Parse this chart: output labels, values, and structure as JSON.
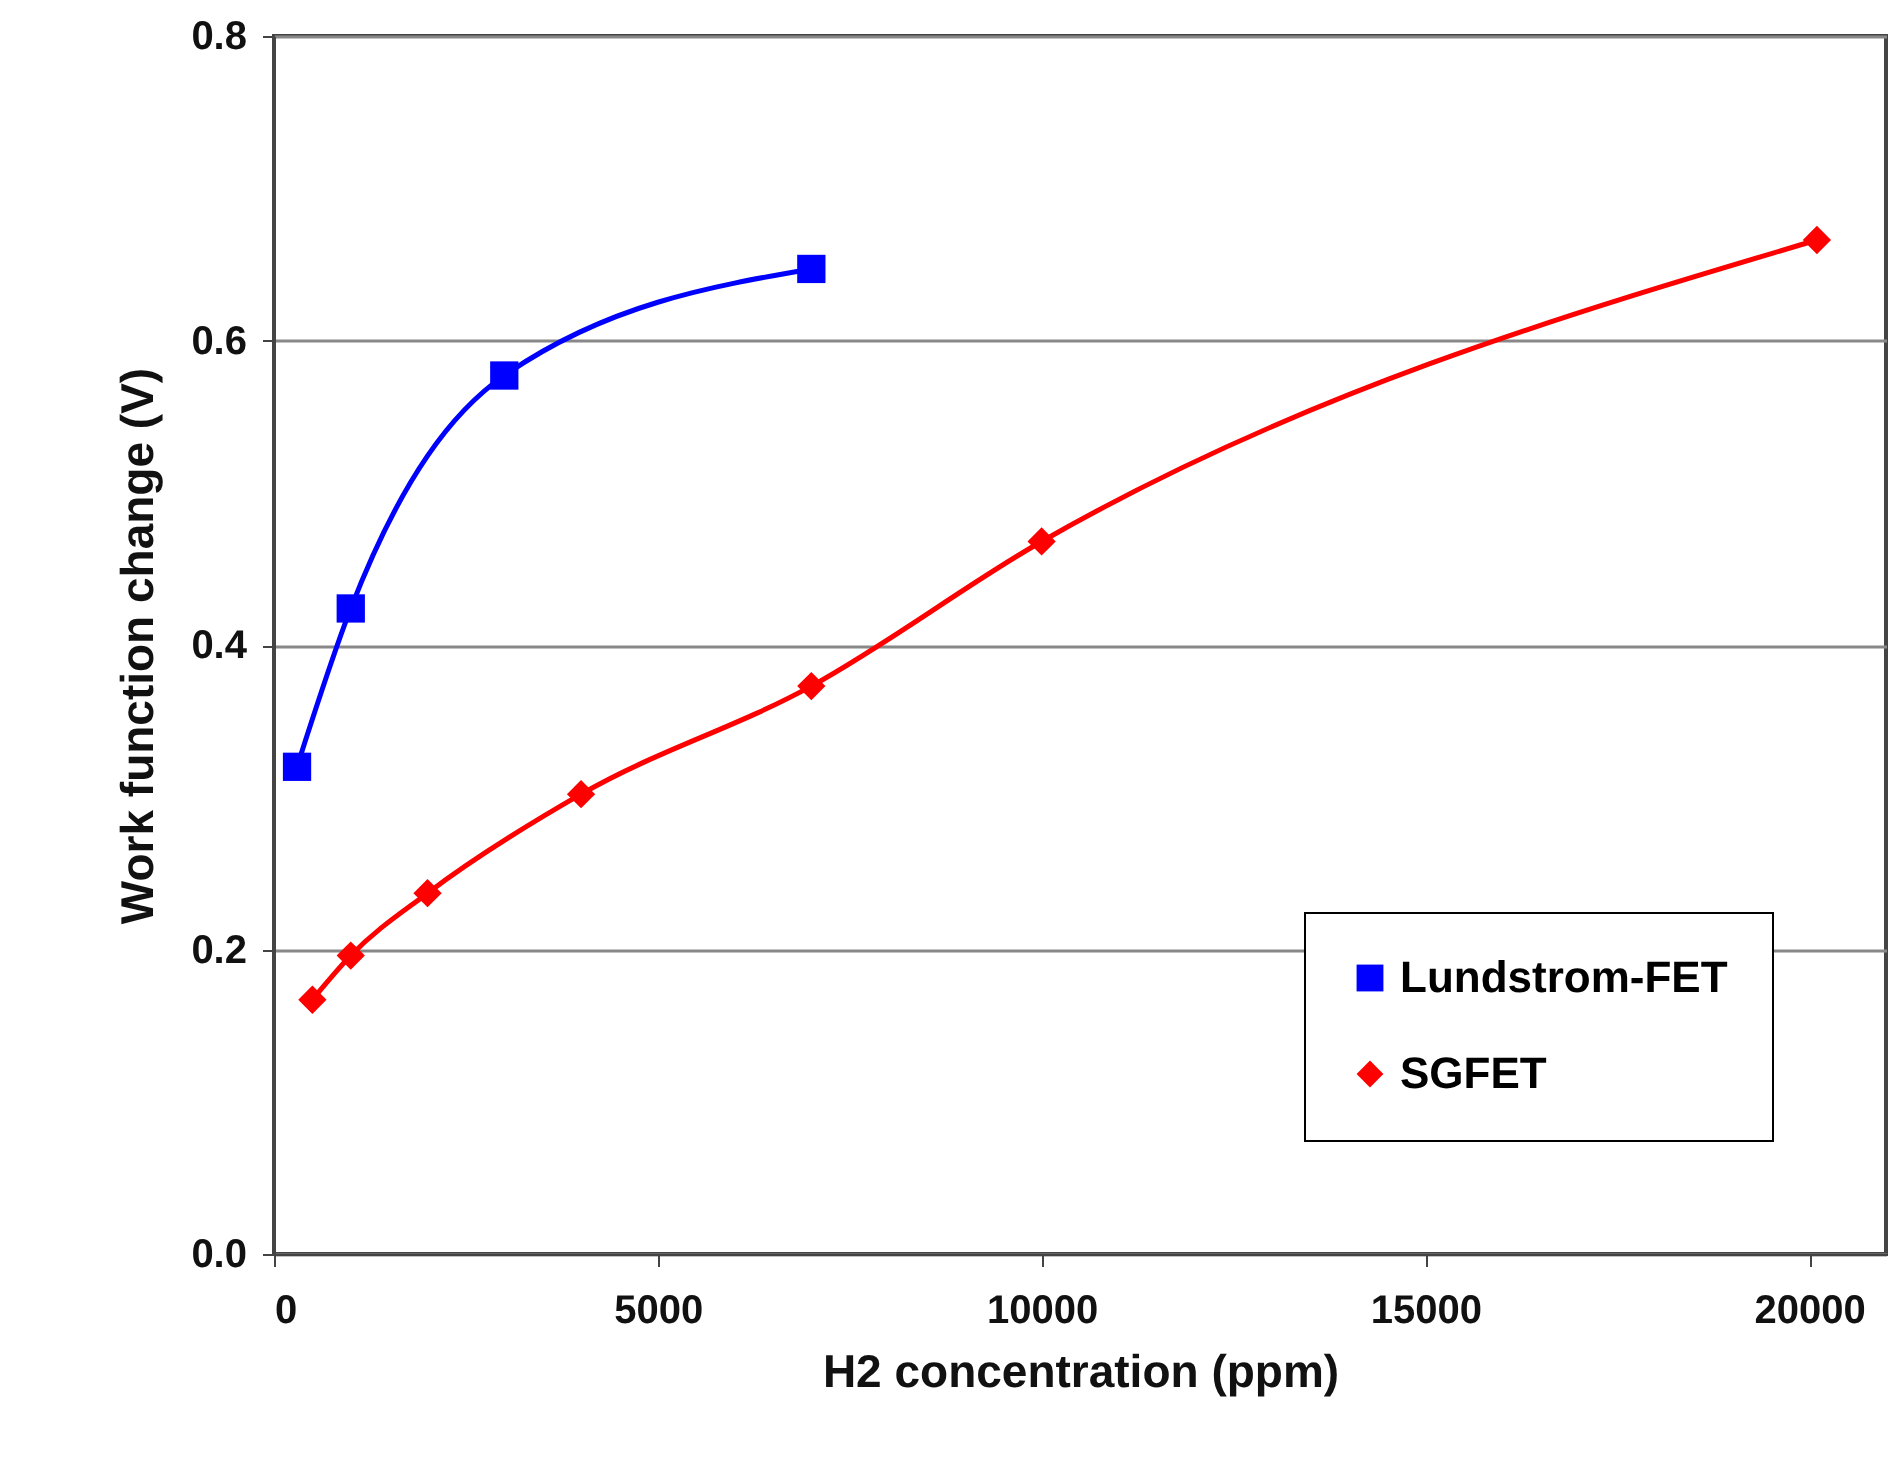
{
  "chart_data": {
    "type": "line",
    "xlabel": "H2 concentration (ppm)",
    "ylabel": "Work function change (V)",
    "series": [
      {
        "name": "Lundstrom-FET",
        "color": "#0000ff",
        "marker": "square",
        "x": [
          300,
          1000,
          3000,
          7000
        ],
        "values": [
          0.32,
          0.424,
          0.577,
          0.647
        ]
      },
      {
        "name": "SGFET",
        "color": "#ff0000",
        "marker": "diamond",
        "x": [
          500,
          1000,
          2000,
          4000,
          7000,
          10000,
          20100
        ],
        "values": [
          0.167,
          0.196,
          0.237,
          0.302,
          0.373,
          0.468,
          0.666
        ]
      }
    ],
    "xlim": [
      0,
      21000
    ],
    "xticks": [
      0,
      5000,
      10000,
      15000,
      20000
    ],
    "ylim": [
      0,
      0.8
    ],
    "yticks": [
      {
        "value": 0,
        "label": "0.0"
      },
      0.2,
      0.4,
      0.6,
      0.8
    ],
    "grid": "y",
    "legend": "bottom right"
  }
}
